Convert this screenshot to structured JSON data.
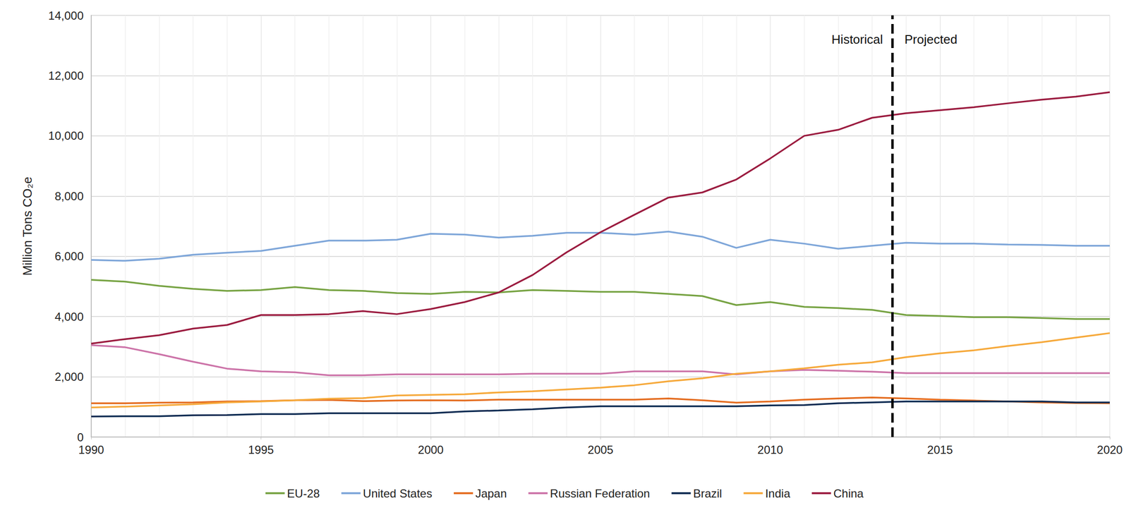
{
  "chart_data": {
    "type": "line",
    "y_label": "Million Tons CO₂e",
    "x": [
      1990,
      1991,
      1992,
      1993,
      1994,
      1995,
      1996,
      1997,
      1998,
      1999,
      2000,
      2001,
      2002,
      2003,
      2004,
      2005,
      2006,
      2007,
      2008,
      2009,
      2010,
      2011,
      2012,
      2013,
      2014,
      2015,
      2016,
      2017,
      2018,
      2019,
      2020
    ],
    "xlim": [
      1990,
      2020
    ],
    "xticks": [
      1990,
      1995,
      2000,
      2005,
      2010,
      2015,
      2020
    ],
    "ylim": [
      0,
      14000
    ],
    "yticks": [
      0,
      {
        "value": 2000,
        "label": "2,000"
      },
      {
        "value": 4000,
        "label": "4,000"
      },
      {
        "value": 6000,
        "label": "6,000"
      },
      {
        "value": 8000,
        "label": "8,000"
      },
      {
        "value": 10000,
        "label": "10,000"
      },
      {
        "value": 12000,
        "label": "12,000"
      },
      {
        "value": 14000,
        "label": "14,000"
      }
    ],
    "grid": true,
    "legend": "bottom",
    "vline": {
      "x": 2013.6,
      "line_style": "dashed",
      "labels": [
        "Historical",
        "Projected"
      ]
    },
    "series": [
      {
        "name": "EU-28",
        "color": "#77a343",
        "values": [
          5220,
          5160,
          5020,
          4920,
          4850,
          4880,
          4980,
          4880,
          4850,
          4780,
          4750,
          4820,
          4800,
          4880,
          4850,
          4820,
          4820,
          4750,
          4680,
          4380,
          4480,
          4320,
          4280,
          4220,
          4050,
          4020,
          3980,
          3980,
          3950,
          3920,
          3920
        ]
      },
      {
        "name": "United States",
        "color": "#7ea6d9",
        "values": [
          5880,
          5850,
          5920,
          6050,
          6120,
          6180,
          6350,
          6520,
          6520,
          6550,
          6750,
          6720,
          6620,
          6680,
          6780,
          6780,
          6720,
          6820,
          6650,
          6280,
          6550,
          6420,
          6250,
          6350,
          6450,
          6420,
          6420,
          6390,
          6380,
          6350,
          6350
        ]
      },
      {
        "name": "Japan",
        "color": "#e46c1f",
        "values": [
          1120,
          1120,
          1140,
          1150,
          1180,
          1190,
          1220,
          1230,
          1190,
          1210,
          1220,
          1210,
          1240,
          1240,
          1240,
          1240,
          1240,
          1280,
          1220,
          1140,
          1180,
          1240,
          1280,
          1310,
          1280,
          1240,
          1210,
          1180,
          1150,
          1130,
          1120
        ]
      },
      {
        "name": "Russian Federation",
        "color": "#cc73a8",
        "values": [
          3050,
          2980,
          2750,
          2500,
          2270,
          2180,
          2150,
          2050,
          2050,
          2080,
          2080,
          2080,
          2080,
          2100,
          2100,
          2100,
          2180,
          2180,
          2180,
          2080,
          2180,
          2230,
          2200,
          2170,
          2120,
          2120,
          2120,
          2120,
          2120,
          2120,
          2120
        ]
      },
      {
        "name": "Brazil",
        "color": "#0d2b52",
        "values": [
          680,
          690,
          690,
          720,
          730,
          760,
          760,
          790,
          790,
          790,
          790,
          850,
          880,
          920,
          980,
          1020,
          1020,
          1020,
          1020,
          1020,
          1050,
          1060,
          1120,
          1150,
          1180,
          1180,
          1180,
          1180,
          1180,
          1150,
          1150
        ]
      },
      {
        "name": "India",
        "color": "#f6a93b",
        "values": [
          980,
          1010,
          1050,
          1090,
          1150,
          1180,
          1220,
          1270,
          1290,
          1380,
          1400,
          1420,
          1480,
          1520,
          1580,
          1640,
          1720,
          1850,
          1950,
          2100,
          2180,
          2280,
          2400,
          2480,
          2650,
          2780,
          2880,
          3020,
          3150,
          3300,
          3450
        ]
      },
      {
        "name": "China",
        "color": "#9b1b3f",
        "values": [
          3100,
          3250,
          3380,
          3600,
          3720,
          4050,
          4050,
          4080,
          4180,
          4080,
          4250,
          4480,
          4800,
          5380,
          6130,
          6800,
          7380,
          7950,
          8120,
          8550,
          9250,
          10000,
          10200,
          10600,
          10750,
          10850,
          10950,
          11080,
          11200,
          11300,
          11450
        ]
      }
    ]
  }
}
